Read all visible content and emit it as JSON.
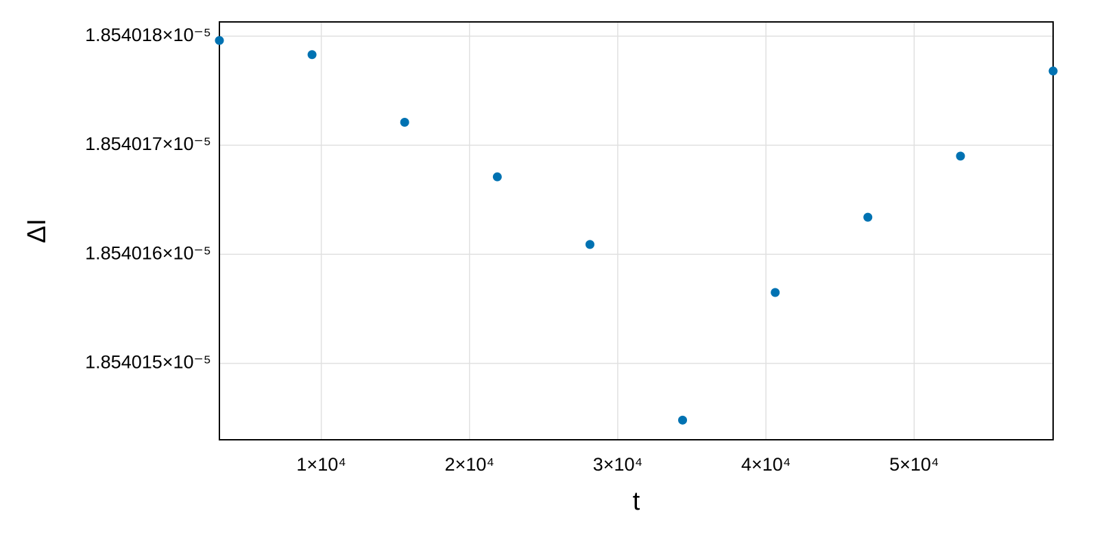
{
  "chart_data": {
    "type": "scatter",
    "x_label": "t",
    "y_label": "ΔI",
    "x": [
      3125,
      9375,
      15625,
      21875,
      28125,
      34375,
      40625,
      46875,
      53125,
      59375
    ],
    "series": [
      {
        "color": "#0072b2",
        "values": [
          1.85401796e-05,
          1.85401783e-05,
          1.85401721e-05,
          1.85401671e-05,
          1.85401609e-05,
          1.85401448e-05,
          1.85401565e-05,
          1.85401634e-05,
          1.8540169e-05,
          1.85401768e-05
        ]
      }
    ],
    "xlim": [
      3125,
      59375
    ],
    "xticks": [
      {
        "value": 10000,
        "label": "1×10⁴"
      },
      {
        "value": 20000,
        "label": "2×10⁴"
      },
      {
        "value": 30000,
        "label": "3×10⁴"
      },
      {
        "value": 40000,
        "label": "4×10⁴"
      },
      {
        "value": 50000,
        "label": "5×10⁴"
      }
    ],
    "ylim": [
      1.8540143e-05,
      1.85401813e-05
    ],
    "yticks": [
      {
        "value": 1.854015e-05,
        "label": "1.854015×10⁻⁵"
      },
      {
        "value": 1.854016e-05,
        "label": "1.854016×10⁻⁵"
      },
      {
        "value": 1.854017e-05,
        "label": "1.854017×10⁻⁵"
      },
      {
        "value": 1.854018e-05,
        "label": "1.854018×10⁻⁵"
      }
    ],
    "grid": true
  }
}
